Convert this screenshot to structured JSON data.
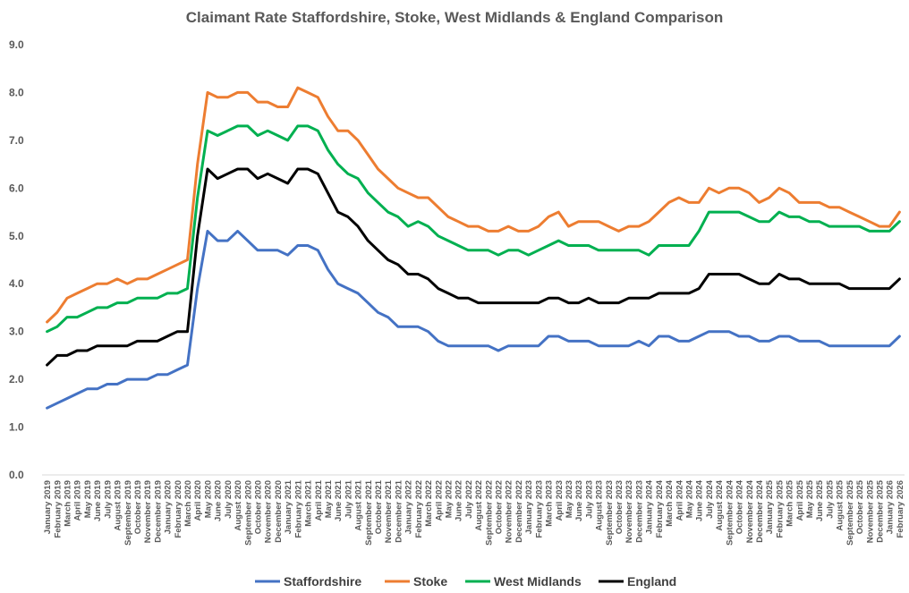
{
  "chart_data": {
    "type": "line",
    "title": "Claimant Rate Staffordshire, Stoke, West Midlands & England Comparison",
    "xlabel": "",
    "ylabel": "",
    "ylim": [
      0,
      9
    ],
    "yticks": [
      "0.0",
      "1.0",
      "2.0",
      "3.0",
      "4.0",
      "5.0",
      "6.0",
      "7.0",
      "8.0",
      "9.0"
    ],
    "grid": false,
    "legend": "bottom",
    "categories": [
      "January 2019",
      "February 2019",
      "March 2019",
      "April 2019",
      "May 2019",
      "June 2019",
      "July 2019",
      "August 2019",
      "September 2019",
      "October 2019",
      "November 2019",
      "December 2019",
      "January 2020",
      "February 2020",
      "March 2020",
      "April 2020",
      "May 2020",
      "June 2020",
      "July 2020",
      "August 2020",
      "September 2020",
      "October 2020",
      "November 2020",
      "December 2020",
      "January 2021",
      "February 2021",
      "March 2021",
      "April 2021",
      "May 2021",
      "June 2021",
      "July 2021",
      "August 2021",
      "September 2021",
      "October 2021",
      "November 2021",
      "December 2021",
      "January 2022",
      "February 2022",
      "March 2022",
      "April 2022",
      "May 2022",
      "June 2022",
      "July 2022",
      "August 2022",
      "September 2022",
      "October 2022",
      "November 2022",
      "December 2022",
      "January 2023",
      "February 2023",
      "March 2023",
      "April 2023",
      "May 2023",
      "June 2023",
      "July 2023",
      "August 2023",
      "September 2023",
      "October 2023",
      "November 2023",
      "December 2023",
      "January 2024",
      "February 2024",
      "March 2024",
      "April 2024",
      "May 2024",
      "June 2024",
      "July 2024",
      "August 2024",
      "September 2024",
      "October 2024",
      "November 2024",
      "December 2024",
      "January 2025",
      "February 2025",
      "March 2025",
      "April 2025",
      "May 2025",
      "June 2025",
      "July 2025",
      "August 2025",
      "September 2025",
      "October 2025",
      "November 2025",
      "December 2025",
      "January 2026",
      "February 2026"
    ],
    "series": [
      {
        "name": "Staffordshire",
        "color": "#4472C4",
        "values": [
          1.4,
          1.5,
          1.6,
          1.7,
          1.8,
          1.8,
          1.9,
          1.9,
          2.0,
          2.0,
          2.0,
          2.1,
          2.1,
          2.2,
          2.3,
          3.9,
          5.1,
          4.9,
          4.9,
          5.1,
          4.9,
          4.7,
          4.7,
          4.7,
          4.6,
          4.8,
          4.8,
          4.7,
          4.3,
          4.0,
          3.9,
          3.8,
          3.6,
          3.4,
          3.3,
          3.1,
          3.1,
          3.1,
          3.0,
          2.8,
          2.7,
          2.7,
          2.7,
          2.7,
          2.7,
          2.6,
          2.7,
          2.7,
          2.7,
          2.7,
          2.9,
          2.9,
          2.8,
          2.8,
          2.8,
          2.7,
          2.7,
          2.7,
          2.7,
          2.8,
          2.7,
          2.9,
          2.9,
          2.8,
          2.8,
          2.9,
          3.0,
          3.0,
          3.0,
          2.9,
          2.9,
          2.8,
          2.8,
          2.9,
          2.9,
          2.8,
          2.8,
          2.8,
          2.7,
          2.7,
          2.7,
          2.7,
          2.7,
          2.7,
          2.7,
          2.9
        ]
      },
      {
        "name": "Stoke",
        "color": "#ED7D31",
        "values": [
          3.2,
          3.4,
          3.7,
          3.8,
          3.9,
          4.0,
          4.0,
          4.1,
          4.0,
          4.1,
          4.1,
          4.2,
          4.3,
          4.4,
          4.5,
          6.5,
          8.0,
          7.9,
          7.9,
          8.0,
          8.0,
          7.8,
          7.8,
          7.7,
          7.7,
          8.1,
          8.0,
          7.9,
          7.5,
          7.2,
          7.2,
          7.0,
          6.7,
          6.4,
          6.2,
          6.0,
          5.9,
          5.8,
          5.8,
          5.6,
          5.4,
          5.3,
          5.2,
          5.2,
          5.1,
          5.1,
          5.2,
          5.1,
          5.1,
          5.2,
          5.4,
          5.5,
          5.2,
          5.3,
          5.3,
          5.3,
          5.2,
          5.1,
          5.2,
          5.2,
          5.3,
          5.5,
          5.7,
          5.8,
          5.7,
          5.7,
          6.0,
          5.9,
          6.0,
          6.0,
          5.9,
          5.7,
          5.8,
          6.0,
          5.9,
          5.7,
          5.7,
          5.7,
          5.6,
          5.6,
          5.5,
          5.4,
          5.3,
          5.2,
          5.2,
          5.5
        ]
      },
      {
        "name": "West Midlands",
        "color": "#00B050",
        "values": [
          3.0,
          3.1,
          3.3,
          3.3,
          3.4,
          3.5,
          3.5,
          3.6,
          3.6,
          3.7,
          3.7,
          3.7,
          3.8,
          3.8,
          3.9,
          5.8,
          7.2,
          7.1,
          7.2,
          7.3,
          7.3,
          7.1,
          7.2,
          7.1,
          7.0,
          7.3,
          7.3,
          7.2,
          6.8,
          6.5,
          6.3,
          6.2,
          5.9,
          5.7,
          5.5,
          5.4,
          5.2,
          5.3,
          5.2,
          5.0,
          4.9,
          4.8,
          4.7,
          4.7,
          4.7,
          4.6,
          4.7,
          4.7,
          4.6,
          4.7,
          4.8,
          4.9,
          4.8,
          4.8,
          4.8,
          4.7,
          4.7,
          4.7,
          4.7,
          4.7,
          4.6,
          4.8,
          4.8,
          4.8,
          4.8,
          5.1,
          5.5,
          5.5,
          5.5,
          5.5,
          5.4,
          5.3,
          5.3,
          5.5,
          5.4,
          5.4,
          5.3,
          5.3,
          5.2,
          5.2,
          5.2,
          5.2,
          5.1,
          5.1,
          5.1,
          5.3
        ]
      },
      {
        "name": "England",
        "color": "#000000",
        "values": [
          2.3,
          2.5,
          2.5,
          2.6,
          2.6,
          2.7,
          2.7,
          2.7,
          2.7,
          2.8,
          2.8,
          2.8,
          2.9,
          3.0,
          3.0,
          5.0,
          6.4,
          6.2,
          6.3,
          6.4,
          6.4,
          6.2,
          6.3,
          6.2,
          6.1,
          6.4,
          6.4,
          6.3,
          5.9,
          5.5,
          5.4,
          5.2,
          4.9,
          4.7,
          4.5,
          4.4,
          4.2,
          4.2,
          4.1,
          3.9,
          3.8,
          3.7,
          3.7,
          3.6,
          3.6,
          3.6,
          3.6,
          3.6,
          3.6,
          3.6,
          3.7,
          3.7,
          3.6,
          3.6,
          3.7,
          3.6,
          3.6,
          3.6,
          3.7,
          3.7,
          3.7,
          3.8,
          3.8,
          3.8,
          3.8,
          3.9,
          4.2,
          4.2,
          4.2,
          4.2,
          4.1,
          4.0,
          4.0,
          4.2,
          4.1,
          4.1,
          4.0,
          4.0,
          4.0,
          4.0,
          3.9,
          3.9,
          3.9,
          3.9,
          3.9,
          4.1
        ]
      }
    ]
  }
}
